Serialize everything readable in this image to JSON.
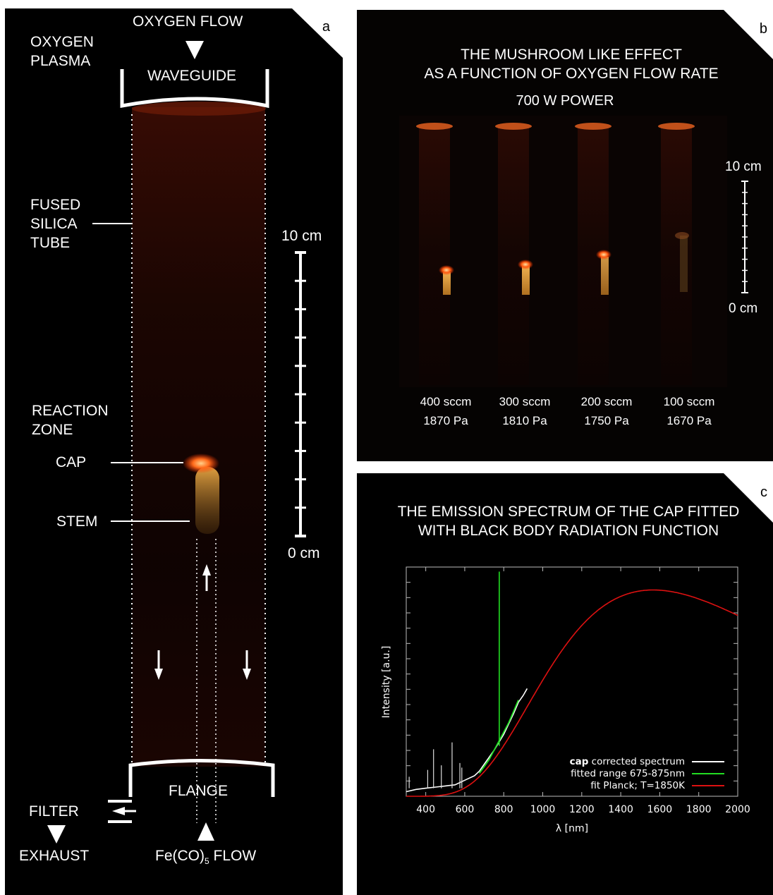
{
  "panel_a": {
    "letter": "a",
    "oxygen_flow": "OXYGEN FLOW",
    "oxygen_plasma": [
      "OXYGEN",
      "PLASMA"
    ],
    "waveguide": "WAVEGUIDE",
    "fused_silica_tube": [
      "FUSED",
      "SILICA",
      "TUBE"
    ],
    "reaction_zone": [
      "REACTION",
      "ZONE"
    ],
    "cap": "CAP",
    "stem": "STEM",
    "scale_top": "10 cm",
    "scale_bottom": "0 cm",
    "flange": "FLANGE",
    "filter": "FILTER",
    "exhaust": "EXHAUST",
    "feco5_prefix": "Fe(CO)",
    "feco5_sub": "5",
    "feco5_suffix": " FLOW"
  },
  "panel_b": {
    "letter": "b",
    "title_line1": "THE MUSHROOM LIKE EFFECT",
    "title_line2": "AS A FUNCTION OF OXYGEN FLOW RATE",
    "power": "700 W POWER",
    "scale_top": "10 cm",
    "scale_bottom": "0 cm",
    "tubes": [
      {
        "flow": "400 sccm",
        "pressure": "1870 Pa"
      },
      {
        "flow": "300 sccm",
        "pressure": "1810 Pa"
      },
      {
        "flow": "200 sccm",
        "pressure": "1750 Pa"
      },
      {
        "flow": "100 sccm",
        "pressure": "1670 Pa"
      }
    ]
  },
  "panel_c": {
    "letter": "c",
    "title_line1": "THE EMISSION SPECTRUM OF THE CAP FITTED",
    "title_line2": "WITH BLACK BODY RADIATION FUNCTION",
    "legend": [
      {
        "bold": "cap",
        "text": " corrected spectrum",
        "color": "#ffffff"
      },
      {
        "bold": "",
        "text": "fitted range 675-875nm",
        "color": "#22dd22"
      },
      {
        "bold": "",
        "text": "fit Planck; T=1850K",
        "color": "#dd1111"
      }
    ]
  },
  "chart_data": {
    "type": "line",
    "xlabel": "λ [nm]",
    "ylabel": "Intensity [a.u.]",
    "xlim": [
      300,
      2000
    ],
    "xticks": [
      400,
      600,
      800,
      1000,
      1200,
      1400,
      1600,
      1800,
      2000
    ],
    "planck_temperature_K": 1850,
    "fit_range_nm": [
      675,
      875
    ],
    "series": [
      {
        "name": "cap corrected spectrum",
        "color": "#ffffff",
        "x": [
          300,
          350,
          400,
          450,
          500,
          550,
          600,
          650,
          675,
          700,
          750,
          800,
          850,
          875,
          900,
          920
        ],
        "y": [
          0.02,
          0.03,
          0.035,
          0.04,
          0.045,
          0.05,
          0.07,
          0.09,
          0.11,
          0.14,
          0.2,
          0.27,
          0.36,
          0.41,
          0.44,
          0.47
        ]
      },
      {
        "name": "fitted range 675-875nm",
        "color": "#22dd22",
        "x": [
          675,
          700,
          725,
          750,
          775,
          800,
          825,
          850,
          875
        ],
        "y": [
          0.1,
          0.13,
          0.16,
          0.2,
          0.24,
          0.28,
          0.32,
          0.37,
          0.42
        ]
      },
      {
        "name": "fit Planck; T=1850K",
        "color": "#dd1111"
      }
    ]
  }
}
